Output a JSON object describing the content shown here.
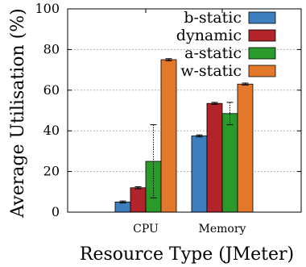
{
  "chart_data": {
    "type": "bar",
    "title": "",
    "xlabel": "Resource Type (JMeter)",
    "ylabel": "Average Utilisation (%)",
    "ylim": [
      0,
      100
    ],
    "yticks": [
      0,
      20,
      40,
      60,
      80,
      100
    ],
    "categories": [
      "CPU",
      "Memory"
    ],
    "grid": "horizontal dashed",
    "legend_position": "top-right",
    "series": [
      {
        "name": "b-static",
        "color": "#3d7ebf",
        "values": [
          5,
          37.5
        ],
        "errors": [
          0.5,
          0.5
        ]
      },
      {
        "name": "dynamic",
        "color": "#b3232a",
        "values": [
          12,
          53.5
        ],
        "errors": [
          0.5,
          0.5
        ]
      },
      {
        "name": "a-static",
        "color": "#2a9a2a",
        "values": [
          25,
          48.5
        ],
        "errors": [
          18,
          5.5
        ]
      },
      {
        "name": "w-static",
        "color": "#e3782b",
        "values": [
          75,
          63
        ],
        "errors": [
          0.5,
          0.5
        ]
      }
    ]
  }
}
